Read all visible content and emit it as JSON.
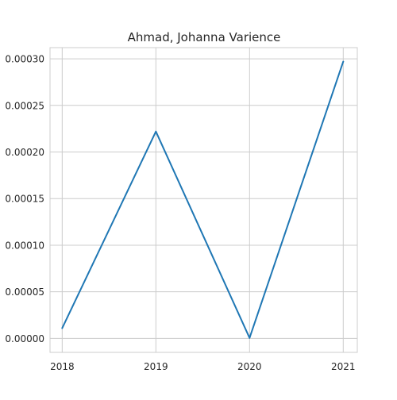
{
  "chart_data": {
    "type": "line",
    "title": "Ahmad, Johanna Varience",
    "xlabel": "",
    "ylabel": "",
    "x": [
      2018,
      2019,
      2020,
      2021
    ],
    "x_tick_labels": [
      "2018",
      "2019",
      "2020",
      "2021"
    ],
    "y_tick_values": [
      0.0,
      5e-05,
      0.0001,
      0.00015,
      0.0002,
      0.00025,
      0.0003
    ],
    "y_tick_labels": [
      "0.00000",
      "0.00005",
      "0.00010",
      "0.00015",
      "0.00020",
      "0.00025",
      "0.00030"
    ],
    "xlim": [
      2017.87,
      2021.15
    ],
    "ylim": [
      -1.5e-05,
      0.000312
    ],
    "grid": true,
    "series": [
      {
        "values": [
          1.1e-05,
          0.000222,
          5e-07,
          0.000297
        ],
        "color": "#1f77b4"
      }
    ]
  }
}
